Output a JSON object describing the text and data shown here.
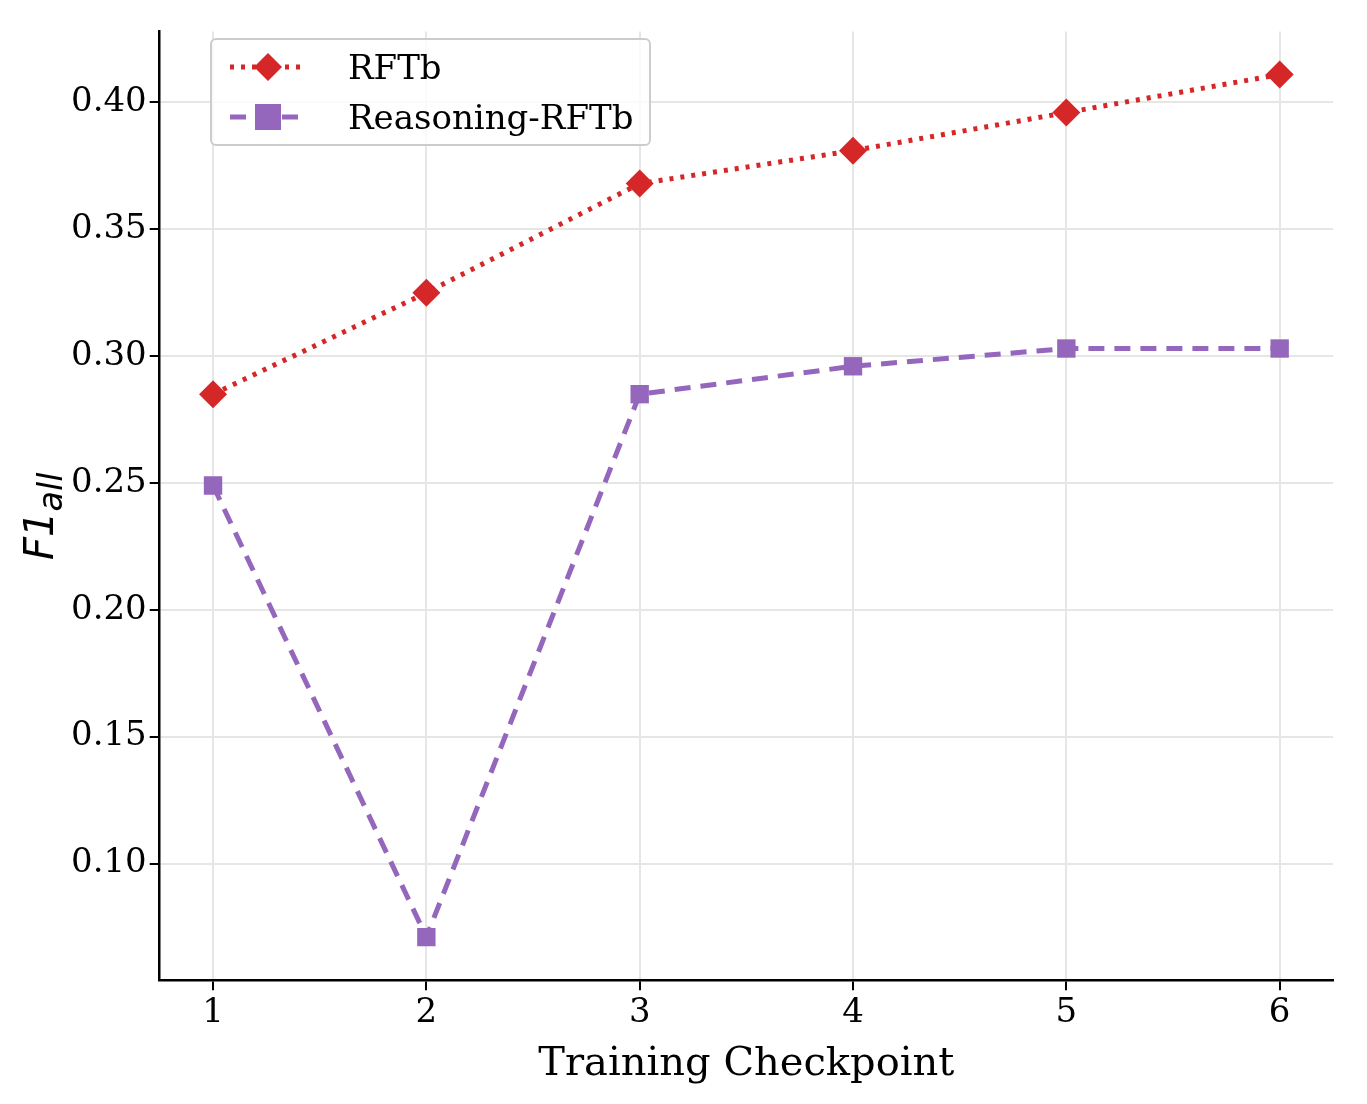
{
  "chart_data": {
    "type": "line",
    "xlabel": "Training Checkpoint",
    "ylabel": "F1$_{all}$",
    "x": [
      1,
      2,
      3,
      4,
      5,
      6
    ],
    "series": [
      {
        "name": "RFTb",
        "color": "#d62728",
        "marker": "diamond",
        "line_style": "dotted",
        "values": [
          0.285,
          0.325,
          0.368,
          0.381,
          0.396,
          0.411
        ]
      },
      {
        "name": "Reasoning-RFTb",
        "color": "#9467bd",
        "marker": "square",
        "line_style": "dashed",
        "values": [
          0.249,
          0.071,
          0.285,
          0.296,
          0.303,
          0.303
        ]
      }
    ],
    "xlim": [
      0.75,
      6.25
    ],
    "xticks": [
      1,
      2,
      3,
      4,
      5,
      6
    ],
    "ylim": [
      0.054,
      0.428
    ],
    "yticks": [
      {
        "value": 0.1,
        "label": "0.10"
      },
      0.15,
      {
        "value": 0.2,
        "label": "0.20"
      },
      0.25,
      {
        "value": 0.3,
        "label": "0.30"
      },
      0.35,
      {
        "value": 0.4,
        "label": "0.40"
      }
    ],
    "grid": true,
    "legend": "top left"
  }
}
